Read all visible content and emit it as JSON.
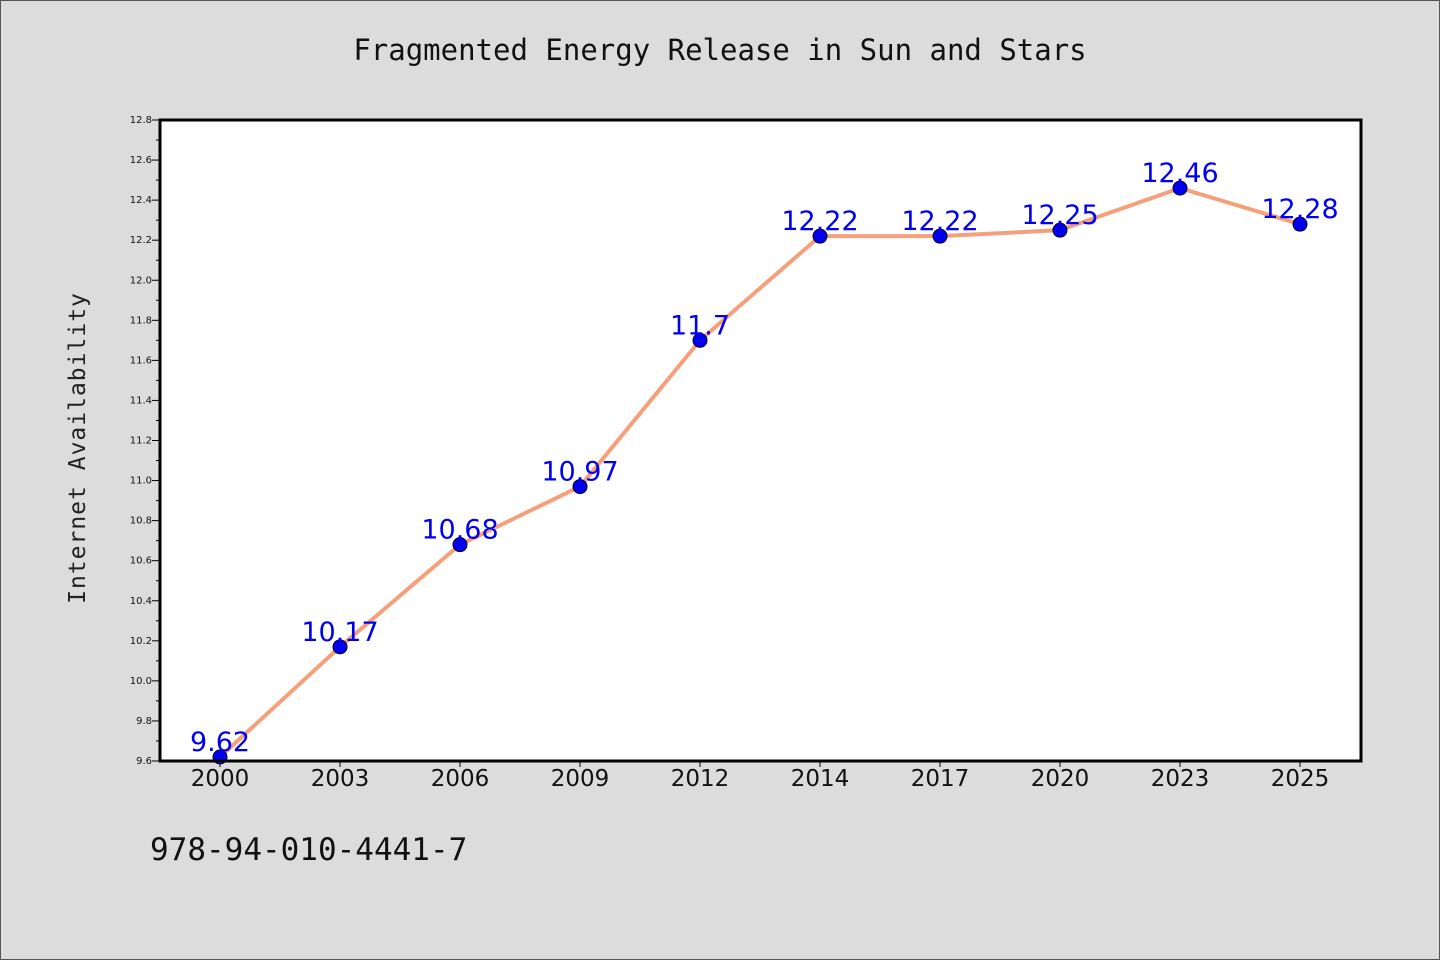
{
  "chart_data": {
    "type": "line",
    "title": "Fragmented Energy Release in Sun and Stars",
    "xlabel": "",
    "ylabel": "Internet Availability",
    "categories": [
      "2000",
      "2003",
      "2006",
      "2009",
      "2012",
      "2014",
      "2017",
      "2020",
      "2023",
      "2025"
    ],
    "series": [
      {
        "values": [
          9.62,
          10.17,
          10.68,
          10.97,
          11.7,
          12.22,
          12.22,
          12.25,
          12.46,
          12.28
        ]
      }
    ],
    "data_labels": [
      "9.62",
      "10.17",
      "10.68",
      "10.97",
      "11.7",
      "12.22",
      "12.22",
      "12.25",
      "12.46",
      "12.28"
    ],
    "ylim": [
      9.6,
      12.8
    ],
    "yticks": [
      "9.6",
      "9.8",
      "10.0",
      "10.2",
      "10.4",
      "10.6",
      "10.8",
      "11.0",
      "11.2",
      "11.4",
      "11.6",
      "11.8",
      "12.0",
      "12.2",
      "12.4",
      "12.6",
      "12.8"
    ],
    "grid": false,
    "legend": "none",
    "colors": {
      "line": "#f5a07a",
      "marker": "#0000ee",
      "data_label": "#0000ee",
      "plot_background": "#ffffff",
      "figure_background": "#dcdcdc"
    }
  },
  "footer_text": "978-94-010-4441-7"
}
